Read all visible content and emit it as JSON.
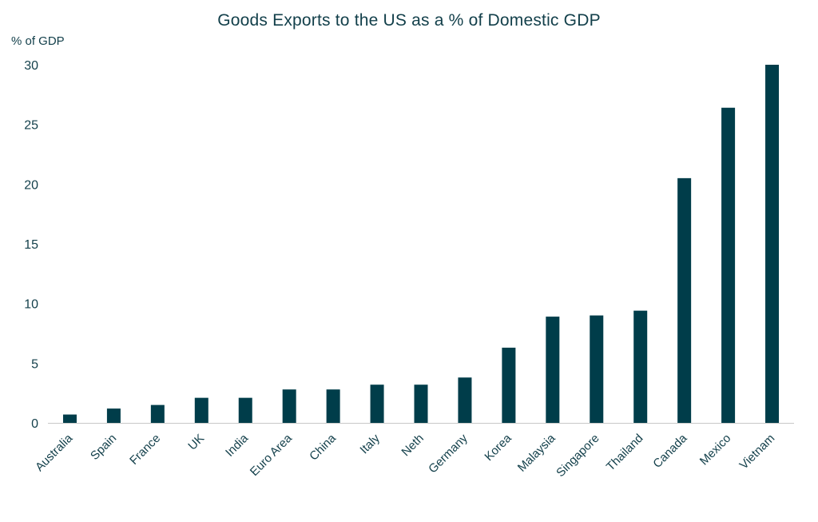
{
  "chart_data": {
    "type": "bar",
    "title": "Goods Exports to the US as a % of Domestic GDP",
    "ylabel": "% of GDP",
    "xlabel": "",
    "categories": [
      "Australia",
      "Spain",
      "France",
      "UK",
      "India",
      "Euro Area",
      "China",
      "Italy",
      "Neth",
      "Germany",
      "Korea",
      "Malaysia",
      "Singapore",
      "Thailand",
      "Canada",
      "Mexico",
      "Vietnam"
    ],
    "values": [
      0.7,
      1.2,
      1.5,
      2.1,
      2.1,
      2.8,
      2.8,
      3.2,
      3.2,
      3.8,
      6.3,
      8.9,
      9.0,
      9.4,
      20.5,
      26.4,
      30.0
    ],
    "ylim": [
      0,
      30
    ],
    "yticks": [
      0,
      5,
      10,
      15,
      20,
      25,
      30
    ],
    "grid": false,
    "legend": "none",
    "bar_color": "#003d4a",
    "axis_color": "#c8c8c8"
  }
}
